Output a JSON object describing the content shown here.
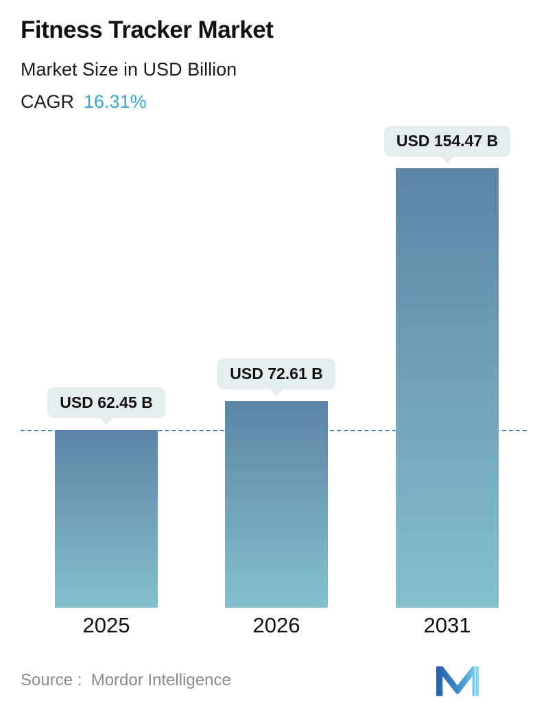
{
  "header": {
    "title": "Fitness Tracker Market",
    "subtitle": "Market Size in USD Billion",
    "cagr_label": "CAGR",
    "cagr_value": "16.31%",
    "cagr_value_color": "#3da3cd"
  },
  "chart_data": {
    "type": "bar",
    "title": "Fitness Tracker Market",
    "subtitle": "Market Size in USD Billion",
    "unit": "USD Billion",
    "cagr": "16.31%",
    "categories": [
      "2025",
      "2026",
      "2031"
    ],
    "values": [
      62.45,
      72.61,
      154.47
    ],
    "value_labels": [
      "USD 62.45 B",
      "USD 72.61 B",
      "USD 154.47 B"
    ],
    "reference_line_value": 62.45,
    "ylim": [
      0,
      160
    ],
    "grid": false,
    "legend": false,
    "bar_gradient_top": "#5c84a7",
    "bar_gradient_bottom": "#84c1cb",
    "label_pill_color": "#e5edef",
    "reference_line_color": "#4b7ea3"
  },
  "footer": {
    "source": "Source :  Mordor Intelligence",
    "logo": "mordor-intelligence-logo"
  }
}
